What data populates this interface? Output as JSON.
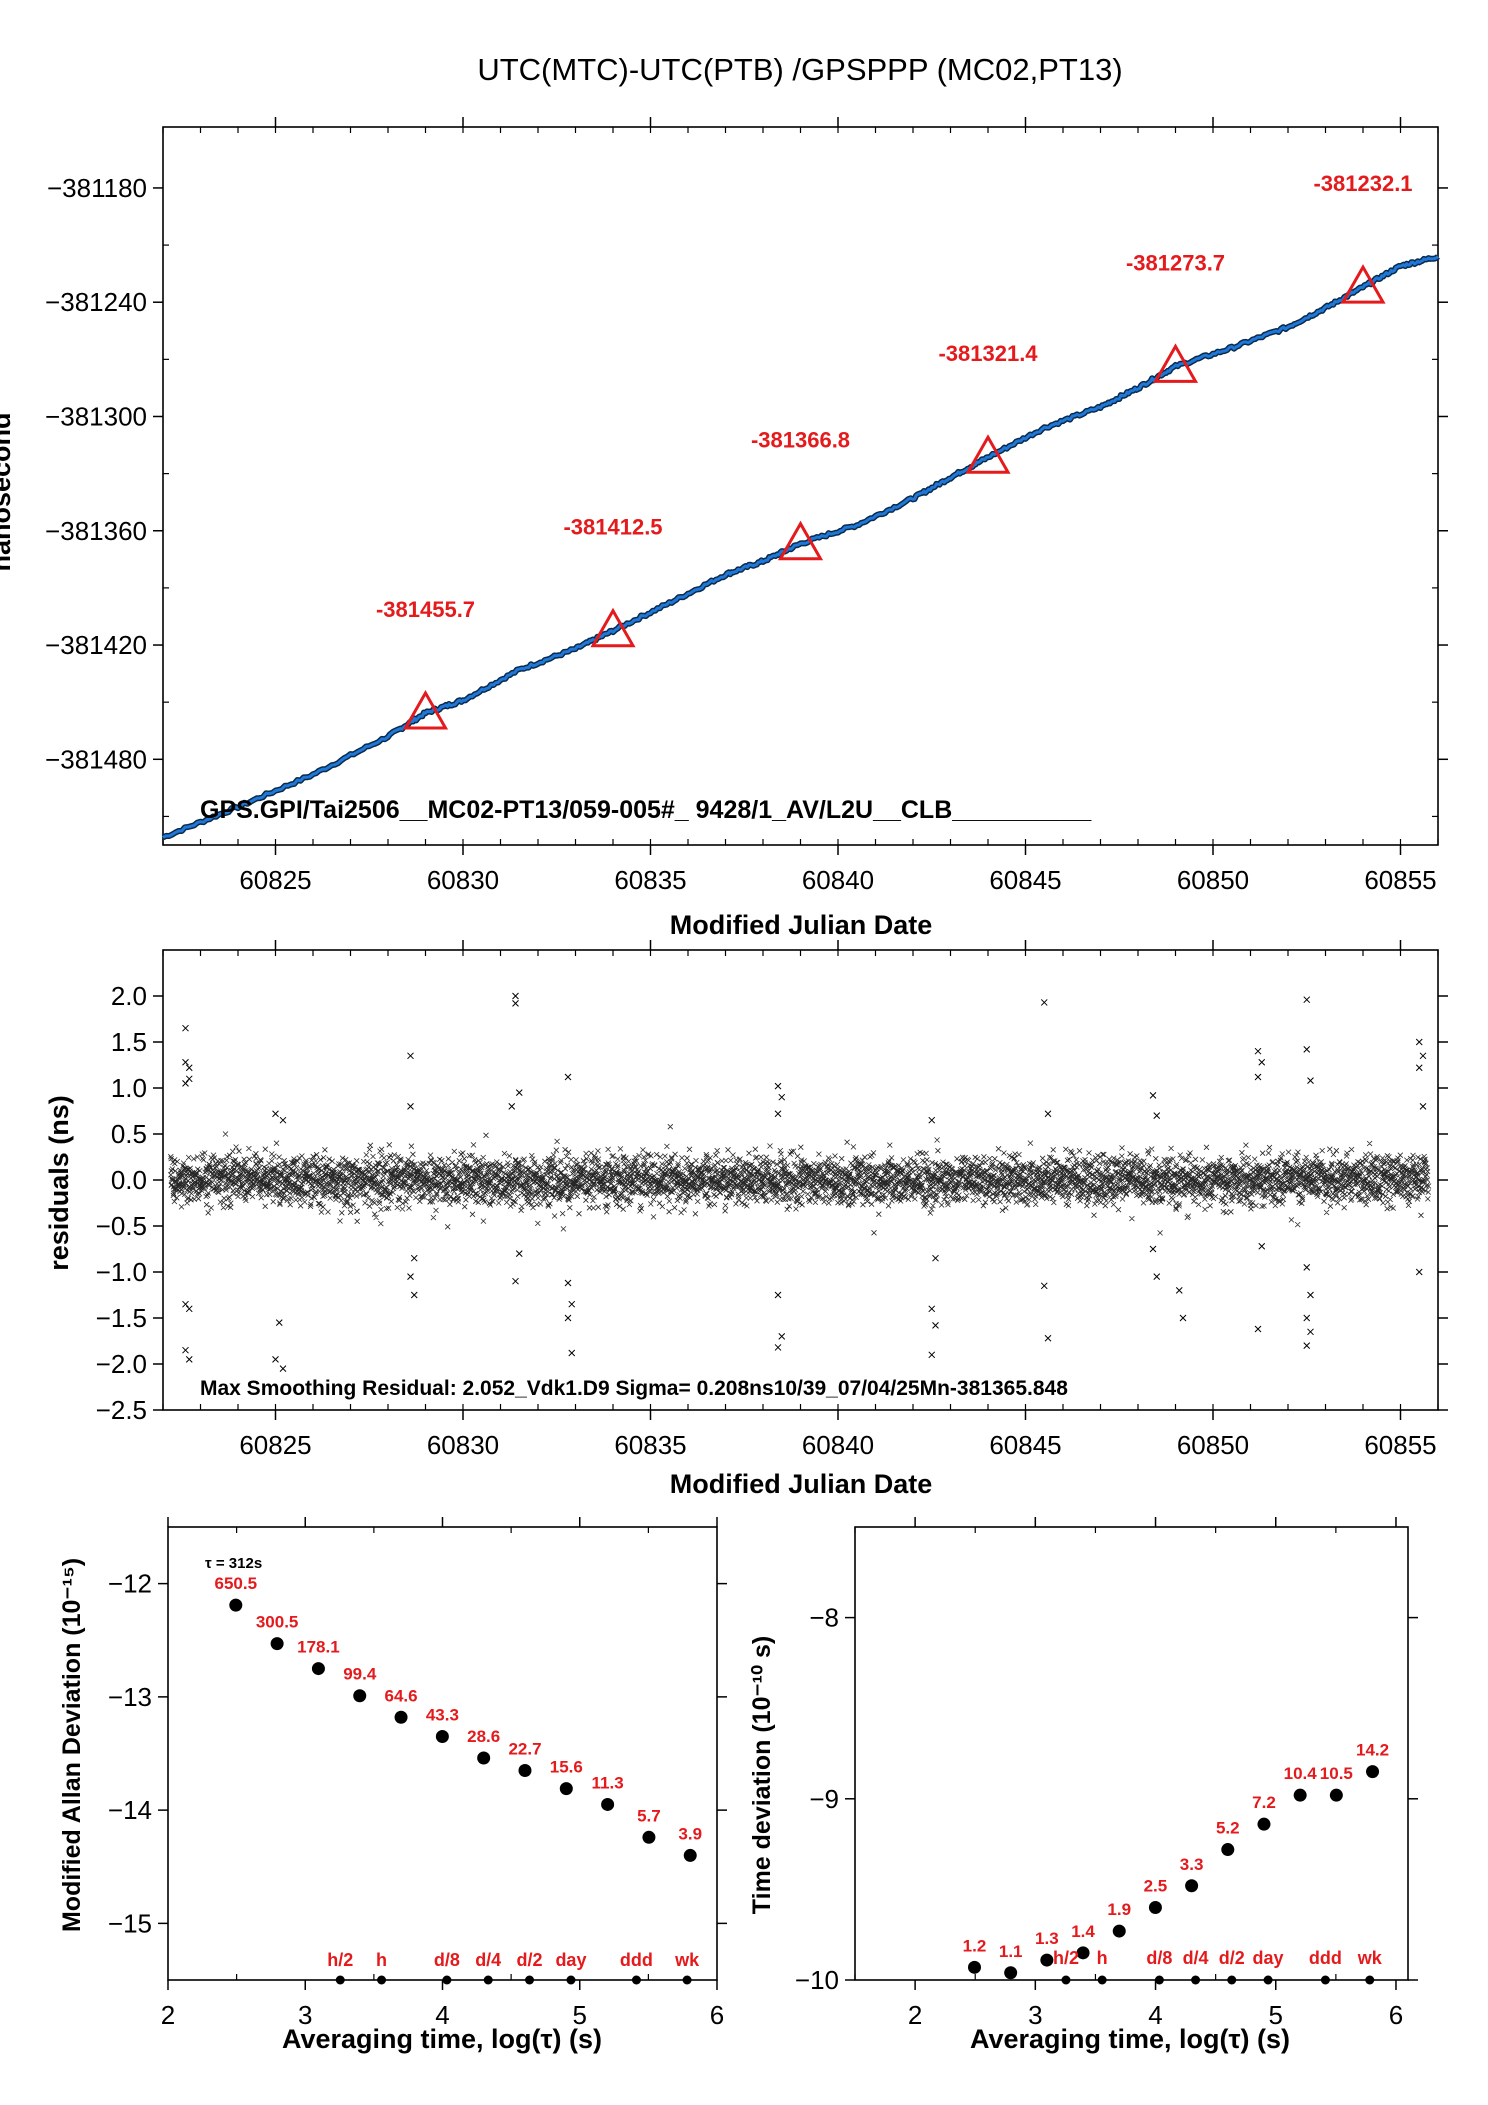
{
  "title": "UTC(MTC)-UTC(PTB)  /GPSPPP  (MC02,PT13)",
  "colors": {
    "line": "#1f78d8",
    "marker": "#e41a1c",
    "label": "#e41a1c",
    "axis": "#000000",
    "residual": "#000000",
    "dot": "#000000"
  },
  "chart_data": [
    {
      "type": "line",
      "name": "main",
      "xlabel": "Modified Julian Date",
      "ylabel": "nanosecond",
      "xlim": [
        60822,
        60856
      ],
      "ylim": [
        -381525,
        -381148
      ],
      "xticks": [
        60825,
        60830,
        60835,
        60840,
        60845,
        60850,
        60855
      ],
      "yticks": [
        -381480,
        -381420,
        -381360,
        -381300,
        -381240,
        -381180
      ],
      "line_points": [
        [
          60822.0,
          -381521
        ],
        [
          60824.0,
          -381505
        ],
        [
          60826.0,
          -381488
        ],
        [
          60828.0,
          -381468
        ],
        [
          60829.0,
          -381455.7
        ],
        [
          60830.0,
          -381449
        ],
        [
          60831.5,
          -381433
        ],
        [
          60833.0,
          -381422
        ],
        [
          60834.0,
          -381412.5
        ],
        [
          60835.5,
          -381398
        ],
        [
          60837.0,
          -381383
        ],
        [
          60838.0,
          -381376
        ],
        [
          60839.0,
          -381366.8
        ],
        [
          60840.5,
          -381357
        ],
        [
          60842.0,
          -381343
        ],
        [
          60843.0,
          -381332
        ],
        [
          60844.0,
          -381321.4
        ],
        [
          60845.5,
          -381306
        ],
        [
          60847.0,
          -381295
        ],
        [
          60848.0,
          -381285
        ],
        [
          60849.0,
          -381273.7
        ],
        [
          60850.5,
          -381264
        ],
        [
          60852.0,
          -381253
        ],
        [
          60853.0,
          -381243
        ],
        [
          60854.0,
          -381232.1
        ],
        [
          60855.0,
          -381221
        ],
        [
          60856.0,
          -381216
        ]
      ],
      "markers": [
        {
          "x": 60829,
          "y": -381455.7,
          "label": "-381455.7"
        },
        {
          "x": 60834,
          "y": -381412.5,
          "label": "-381412.5"
        },
        {
          "x": 60839,
          "y": -381366.8,
          "label": "-381366.8"
        },
        {
          "x": 60844,
          "y": -381321.4,
          "label": "-381321.4"
        },
        {
          "x": 60849,
          "y": -381273.7,
          "label": "-381273.7"
        },
        {
          "x": 60854,
          "y": -381232.1,
          "label": "-381232.1"
        }
      ],
      "annotation": "GPS.GPI/Tai2506__MC02-PT13/059-005#_  9428/1_AV/L2U__CLB__________"
    },
    {
      "type": "scatter",
      "name": "residuals",
      "xlabel": "Modified Julian Date",
      "ylabel": "residuals (ns)",
      "xlim": [
        60822,
        60856
      ],
      "ylim": [
        -2.5,
        2.5
      ],
      "xticks": [
        60825,
        60830,
        60835,
        60840,
        60845,
        60850,
        60855
      ],
      "yticks": [
        -2.5,
        -2.0,
        -1.5,
        -1.0,
        -0.5,
        0.0,
        0.5,
        1.0,
        1.5,
        2.0
      ],
      "ytick_labels": [
        "−2.5",
        "−2.0",
        "−1.5",
        "−1.0",
        "−0.5",
        "0.0",
        "0.5",
        "1.0",
        "1.5",
        "2.0"
      ],
      "sigma": 0.208,
      "outliers": [
        [
          60822.6,
          1.65
        ],
        [
          60822.6,
          1.28
        ],
        [
          60822.7,
          1.22
        ],
        [
          60822.6,
          1.05
        ],
        [
          60822.7,
          1.1
        ],
        [
          60822.6,
          -1.35
        ],
        [
          60822.7,
          -1.4
        ],
        [
          60822.6,
          -1.85
        ],
        [
          60822.7,
          -1.95
        ],
        [
          60825.0,
          0.72
        ],
        [
          60825.2,
          0.65
        ],
        [
          60825.1,
          -1.55
        ],
        [
          60825.0,
          -1.95
        ],
        [
          60825.2,
          -2.05
        ],
        [
          60828.6,
          1.35
        ],
        [
          60828.6,
          0.8
        ],
        [
          60828.7,
          -0.85
        ],
        [
          60828.6,
          -1.05
        ],
        [
          60828.7,
          -1.25
        ],
        [
          60831.4,
          2.0
        ],
        [
          60831.4,
          1.92
        ],
        [
          60831.5,
          0.95
        ],
        [
          60831.3,
          0.8
        ],
        [
          60831.4,
          -1.1
        ],
        [
          60831.5,
          -0.8
        ],
        [
          60832.8,
          1.12
        ],
        [
          60832.8,
          -1.12
        ],
        [
          60832.9,
          -1.35
        ],
        [
          60832.8,
          -1.5
        ],
        [
          60832.9,
          -1.88
        ],
        [
          60838.4,
          1.02
        ],
        [
          60838.5,
          0.9
        ],
        [
          60838.4,
          0.72
        ],
        [
          60838.4,
          -1.25
        ],
        [
          60838.5,
          -1.7
        ],
        [
          60838.4,
          -1.82
        ],
        [
          60842.5,
          0.65
        ],
        [
          60842.6,
          -0.85
        ],
        [
          60842.5,
          -1.4
        ],
        [
          60842.6,
          -1.58
        ],
        [
          60842.5,
          -1.9
        ],
        [
          60845.5,
          1.93
        ],
        [
          60845.6,
          0.72
        ],
        [
          60845.5,
          -1.15
        ],
        [
          60845.6,
          -1.72
        ],
        [
          60848.4,
          0.92
        ],
        [
          60848.5,
          0.7
        ],
        [
          60848.4,
          -0.75
        ],
        [
          60848.5,
          -1.05
        ],
        [
          60849.1,
          -1.2
        ],
        [
          60849.2,
          -1.5
        ],
        [
          60851.2,
          1.4
        ],
        [
          60851.3,
          1.28
        ],
        [
          60851.2,
          1.12
        ],
        [
          60851.3,
          -0.72
        ],
        [
          60851.2,
          -1.62
        ],
        [
          60852.5,
          1.96
        ],
        [
          60852.5,
          1.42
        ],
        [
          60852.6,
          1.08
        ],
        [
          60852.5,
          -0.95
        ],
        [
          60852.6,
          -1.25
        ],
        [
          60852.5,
          -1.5
        ],
        [
          60852.6,
          -1.65
        ],
        [
          60852.5,
          -1.8
        ],
        [
          60855.5,
          1.5
        ],
        [
          60855.6,
          1.35
        ],
        [
          60855.5,
          1.22
        ],
        [
          60855.6,
          0.8
        ],
        [
          60855.5,
          -1.0
        ]
      ],
      "annotation": "Max Smoothing Residual: 2.052_Vdk1.D9  Sigma= 0.208ns10/39_07/04/25Mn-381365.848"
    },
    {
      "type": "scatter",
      "name": "mdev",
      "xlabel": "Averaging time, log(τ) (s)",
      "ylabel": "Modified Allan Deviation (10⁻¹⁵)",
      "xlim": [
        2,
        6
      ],
      "ylim": [
        -15.5,
        -11.5
      ],
      "xticks": [
        2,
        3,
        4,
        5,
        6
      ],
      "yticks": [
        -15,
        -14,
        -13,
        -12
      ],
      "tau_note": "τ = 312s",
      "points": [
        {
          "x": 2.494,
          "y": -12.19,
          "label": "650.5"
        },
        {
          "x": 2.795,
          "y": -12.53,
          "label": "300.5"
        },
        {
          "x": 3.096,
          "y": -12.75,
          "label": "178.1"
        },
        {
          "x": 3.397,
          "y": -12.99,
          "label": "99.4"
        },
        {
          "x": 3.698,
          "y": -13.18,
          "label": "64.6"
        },
        {
          "x": 3.999,
          "y": -13.35,
          "label": "43.3"
        },
        {
          "x": 4.3,
          "y": -13.54,
          "label": "28.6"
        },
        {
          "x": 4.601,
          "y": -13.65,
          "label": "22.7"
        },
        {
          "x": 4.902,
          "y": -13.81,
          "label": "15.6"
        },
        {
          "x": 5.203,
          "y": -13.95,
          "label": "11.3"
        },
        {
          "x": 5.504,
          "y": -14.24,
          "label": "5.7"
        },
        {
          "x": 5.805,
          "y": -14.4,
          "label": "3.9"
        }
      ],
      "markers": [
        {
          "x": 3.255,
          "label": "h/2"
        },
        {
          "x": 3.556,
          "label": "h"
        },
        {
          "x": 4.032,
          "label": "d/8"
        },
        {
          "x": 4.333,
          "label": "d/4"
        },
        {
          "x": 4.634,
          "label": "d/2"
        },
        {
          "x": 4.936,
          "label": "day"
        },
        {
          "x": 5.413,
          "label": "ddd"
        },
        {
          "x": 5.782,
          "label": "wk"
        }
      ]
    },
    {
      "type": "scatter",
      "name": "tdev",
      "xlabel": "Averaging time, log(τ) (s)",
      "ylabel": "Time deviation (10⁻¹⁰ s)",
      "xlim": [
        1.5,
        6.1
      ],
      "ylim": [
        -10,
        -7.5
      ],
      "xticks": [
        2,
        3,
        4,
        5,
        6
      ],
      "yticks": [
        -10,
        -9,
        -8
      ],
      "points": [
        {
          "x": 2.494,
          "y": -9.93,
          "label": "1.2"
        },
        {
          "x": 2.795,
          "y": -9.96,
          "label": "1.1"
        },
        {
          "x": 3.096,
          "y": -9.89,
          "label": "1.3"
        },
        {
          "x": 3.397,
          "y": -9.85,
          "label": "1.4"
        },
        {
          "x": 3.698,
          "y": -9.73,
          "label": "1.9"
        },
        {
          "x": 3.999,
          "y": -9.6,
          "label": "2.5"
        },
        {
          "x": 4.3,
          "y": -9.48,
          "label": "3.3"
        },
        {
          "x": 4.601,
          "y": -9.28,
          "label": "5.2"
        },
        {
          "x": 4.902,
          "y": -9.14,
          "label": "7.2"
        },
        {
          "x": 5.203,
          "y": -8.98,
          "label": "10.4"
        },
        {
          "x": 5.504,
          "y": -8.98,
          "label": "10.5"
        },
        {
          "x": 5.805,
          "y": -8.85,
          "label": "14.2"
        }
      ],
      "markers": [
        {
          "x": 3.255,
          "label": "h/2"
        },
        {
          "x": 3.556,
          "label": "h"
        },
        {
          "x": 4.032,
          "label": "d/8"
        },
        {
          "x": 4.333,
          "label": "d/4"
        },
        {
          "x": 4.634,
          "label": "d/2"
        },
        {
          "x": 4.936,
          "label": "day"
        },
        {
          "x": 5.413,
          "label": "ddd"
        },
        {
          "x": 5.782,
          "label": "wk"
        }
      ]
    }
  ]
}
